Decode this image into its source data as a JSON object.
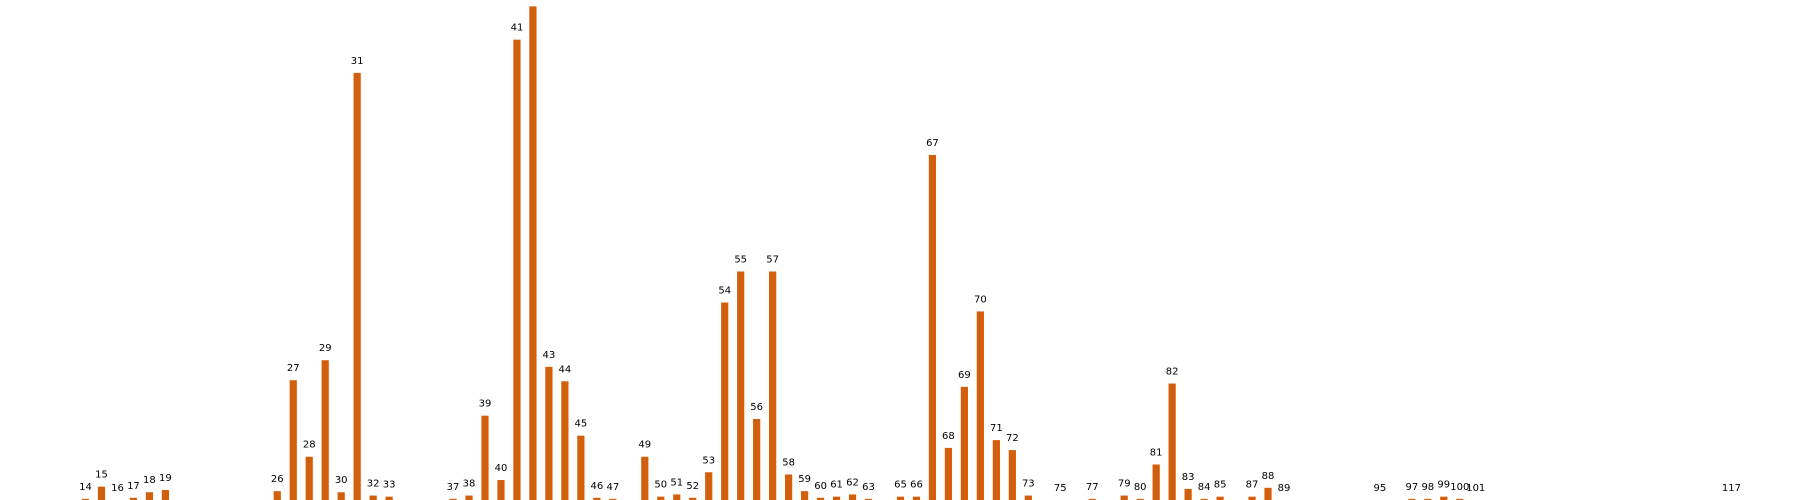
{
  "chart_data": {
    "type": "bar",
    "title": "",
    "xlabel": "",
    "ylabel": "",
    "bar_color": "#d35f0c",
    "ylim": [
      0,
      43
    ],
    "grid": false,
    "legend": "none",
    "categories": [
      "14",
      "15",
      "16",
      "17",
      "18",
      "19",
      "26",
      "27",
      "28",
      "29",
      "30",
      "31",
      "32",
      "33",
      "37",
      "38",
      "39",
      "40",
      "41",
      "42",
      "43",
      "44",
      "45",
      "46",
      "47",
      "49",
      "50",
      "51",
      "52",
      "53",
      "54",
      "55",
      "56",
      "57",
      "58",
      "59",
      "60",
      "61",
      "62",
      "63",
      "65",
      "66",
      "67",
      "68",
      "69",
      "70",
      "71",
      "72",
      "73",
      "75",
      "77",
      "79",
      "80",
      "81",
      "82",
      "83",
      "84",
      "85",
      "87",
      "88",
      "89",
      "95",
      "97",
      "98",
      "99",
      "100",
      "101",
      "117"
    ],
    "x": [
      14,
      15,
      16,
      17,
      18,
      19,
      26,
      27,
      28,
      29,
      30,
      31,
      32,
      33,
      37,
      38,
      39,
      40,
      41,
      42,
      43,
      44,
      45,
      46,
      47,
      49,
      50,
      51,
      52,
      53,
      54,
      55,
      56,
      57,
      58,
      59,
      60,
      61,
      62,
      63,
      65,
      66,
      67,
      68,
      69,
      70,
      71,
      72,
      73,
      75,
      77,
      79,
      80,
      81,
      82,
      83,
      84,
      85,
      87,
      88,
      89,
      95,
      97,
      98,
      99,
      100,
      101,
      117
    ],
    "values": [
      0.1,
      1.2,
      0,
      0.2,
      0.7,
      0.9,
      0.8,
      10.8,
      3.9,
      12.6,
      0.7,
      38.5,
      0.4,
      0.3,
      0.1,
      0.4,
      7.6,
      1.8,
      41.5,
      44.5,
      12,
      10.7,
      5.8,
      0.2,
      0.1,
      3.9,
      0.3,
      0.5,
      0.2,
      2.5,
      17.8,
      20.6,
      7.3,
      20.6,
      2.3,
      0.8,
      0.2,
      0.3,
      0.5,
      0.1,
      0.3,
      0.3,
      31.1,
      4.7,
      10.2,
      17,
      5.4,
      4.5,
      0.4,
      0,
      0.1,
      0.4,
      0.1,
      3.2,
      10.5,
      1,
      0.1,
      0.3,
      0.3,
      1.1,
      0,
      0,
      0.1,
      0.1,
      0.3,
      0.1,
      0,
      0
    ]
  }
}
